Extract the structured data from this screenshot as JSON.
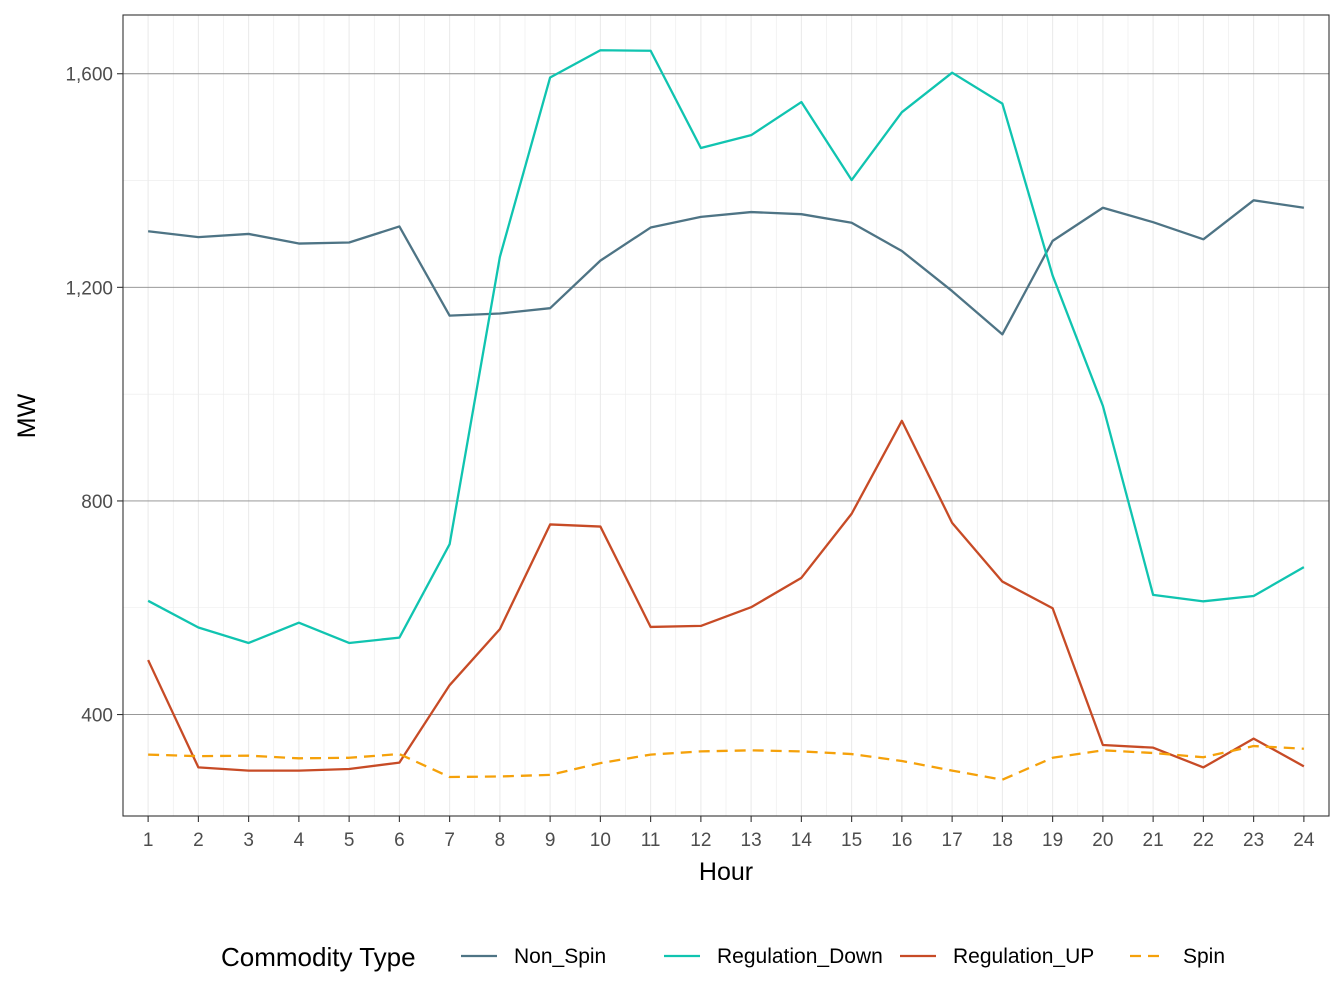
{
  "chart_data": {
    "type": "line",
    "xlabel": "Hour",
    "ylabel": "MW",
    "x": [
      1,
      2,
      3,
      4,
      5,
      6,
      7,
      8,
      9,
      10,
      11,
      12,
      13,
      14,
      15,
      16,
      17,
      18,
      19,
      20,
      21,
      22,
      23,
      24
    ],
    "xlim": [
      0.5,
      24.5
    ],
    "ylim": [
      210,
      1710
    ],
    "yticks": [
      400,
      800,
      1200,
      1600
    ],
    "ytick_labels": [
      "400",
      "800",
      "1,200",
      "1,600"
    ],
    "legend_title": "Commodity Type",
    "legend_position": "bottom",
    "grid": true,
    "theme": "bw",
    "series": [
      {
        "name": "Non_Spin",
        "color": "#4e7485",
        "dash": "solid",
        "values": [
          1305,
          1294,
          1300,
          1282,
          1284,
          1314,
          1147,
          1151,
          1161,
          1250,
          1312,
          1332,
          1341,
          1337,
          1321,
          1268,
          1193,
          1112,
          1287,
          1349,
          1322,
          1290,
          1363,
          1349
        ]
      },
      {
        "name": "Regulation_Down",
        "color": "#10c4b0",
        "dash": "solid",
        "values": [
          613,
          563,
          534,
          572,
          534,
          544,
          719,
          1257,
          1593,
          1644,
          1643,
          1461,
          1485,
          1547,
          1401,
          1528,
          1602,
          1544,
          1222,
          978,
          624,
          612,
          622,
          676
        ]
      },
      {
        "name": "Regulation_UP",
        "color": "#c74b26",
        "dash": "solid",
        "values": [
          502,
          301,
          295,
          295,
          298,
          310,
          455,
          560,
          756,
          752,
          564,
          566,
          601,
          656,
          776,
          950,
          759,
          649,
          599,
          343,
          338,
          301,
          355,
          303
        ]
      },
      {
        "name": "Spin",
        "color": "#f5a10a",
        "dash": "dashed",
        "values": [
          325,
          322,
          323,
          318,
          319,
          326,
          283,
          284,
          287,
          309,
          325,
          331,
          333,
          331,
          326,
          313,
          295,
          278,
          319,
          333,
          328,
          320,
          341,
          336
        ]
      }
    ]
  }
}
